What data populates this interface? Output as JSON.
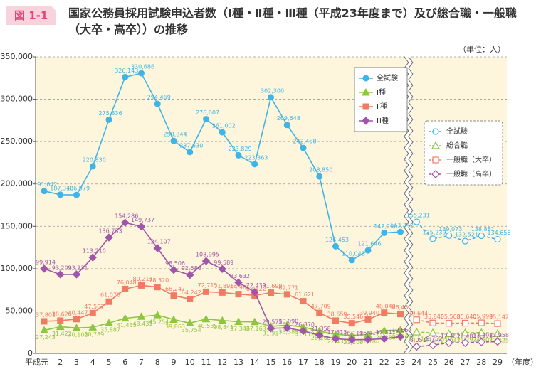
{
  "chart_data": {
    "type": "line",
    "badge": "図 1-1",
    "title": "国家公務員採用試験申込者数（Ⅰ種・Ⅱ種・Ⅲ種（平成23年度まで）及び総合職・一般職（大卒・高卒））の推移",
    "unit_label": "（単位：人）",
    "x_label": "（年度）",
    "categories": [
      "平成元",
      "2",
      "3",
      "4",
      "5",
      "6",
      "7",
      "8",
      "9",
      "10",
      "11",
      "12",
      "13",
      "14",
      "15",
      "16",
      "17",
      "18",
      "19",
      "20",
      "21",
      "22",
      "23",
      "24",
      "25",
      "26",
      "27",
      "28",
      "29"
    ],
    "ylim": [
      0,
      350000
    ],
    "yticks": [
      0,
      {
        "value": 50000,
        "label": "50,000"
      },
      {
        "value": 100000,
        "label": "100,000"
      },
      {
        "value": 150000,
        "label": "150,000"
      },
      {
        "value": 200000,
        "label": "200,000"
      },
      {
        "value": 250000,
        "label": "250,000"
      },
      {
        "value": 300000,
        "label": "300,000"
      },
      {
        "value": 350000,
        "label": "350,000"
      }
    ],
    "grid": true,
    "series": [
      {
        "name": "全試験",
        "color": "#3fb4e6",
        "marker": "circle",
        "dashed": false,
        "values": [
          191642,
          187340,
          186979,
          220830,
          275836,
          326143,
          330686,
          294469,
          250844,
          237630,
          276607,
          261002,
          233829,
          223363,
          302300,
          269648,
          242458,
          208850,
          126453,
          110043,
          121646,
          142290,
          143342,
          null,
          null,
          null,
          null,
          null,
          null
        ],
        "value_labels": [
          "191,642",
          "187,340",
          "186,979",
          "220,830",
          "275,836",
          "326,143",
          "330,686",
          "294,469",
          "250,844",
          "237,630",
          "276,607",
          "261,002",
          "233,829",
          "223,363",
          "302,300",
          "269,648",
          "242,458",
          "208,850",
          "126,453",
          "110,043",
          "121,646",
          "142,290",
          "143,342",
          null,
          null,
          null,
          null,
          null,
          null
        ]
      },
      {
        "name": "Ⅰ種",
        "color": "#8dc63f",
        "marker": "triangle",
        "dashed": false,
        "values": [
          27243,
          31422,
          30102,
          30789,
          35887,
          41433,
          43431,
          45254,
          39863,
          35754,
          40535,
          38841,
          37346,
          37163,
          31917,
          33385,
          31112,
          26268,
          22435,
          21200,
          22186,
          26888,
          27567,
          null,
          null,
          null,
          null,
          null,
          null
        ],
        "value_labels": [
          "27,243",
          "31,422",
          "30,102",
          "30,789",
          "35,887",
          "41,433",
          "43,431",
          "45,254",
          "39,863",
          "35,754",
          "40,535",
          "38,841",
          "37,346",
          "37,163",
          "31,917",
          "33,385",
          "31,112",
          "26,268",
          "22,435",
          "21,200",
          "22,186",
          "26,888",
          "27,567",
          null,
          null,
          null,
          null,
          null,
          null
        ]
      },
      {
        "name": "Ⅱ種",
        "color": "#f07a64",
        "marker": "square",
        "dashed": false,
        "values": [
          37801,
          38626,
          40447,
          47567,
          61076,
          76048,
          80211,
          78320,
          68247,
          64242,
          72715,
          71891,
          69985,
          68422,
          71699,
          69771,
          61621,
          47709,
          38659,
          35546,
          39940,
          48040,
          46450,
          null,
          null,
          null,
          null,
          null,
          null
        ],
        "value_labels": [
          "37,801",
          "38,626",
          "40,447",
          "47,567",
          "61,076",
          "76,048",
          "80,211",
          "78,320",
          "68,247",
          "64,242",
          "72,715",
          "71,891",
          "69,985",
          "68,422",
          "71,699",
          "69,771",
          "61,621",
          "47,709",
          "38,659",
          "35,546",
          "39,940",
          "48,040",
          "46,450",
          null,
          null,
          null,
          null,
          null,
          null
        ]
      },
      {
        "name": "Ⅲ種",
        "color": "#a055a8",
        "marker": "diamond",
        "dashed": false,
        "values": [
          99914,
          93202,
          93231,
          113210,
          136733,
          154286,
          149737,
          124107,
          98506,
          92586,
          108995,
          99589,
          83632,
          72439,
          29575,
          30090,
          26370,
          21358,
          17313,
          16119,
          16417,
          17311,
          19667,
          null,
          null,
          null,
          null,
          null,
          null
        ],
        "value_labels": [
          "99,914",
          "93,202",
          "93,231",
          "113,210",
          "136,733",
          "154,286",
          "149,737",
          "124,107",
          "98,506",
          "92,586",
          "108,995",
          "99,589",
          "83,632",
          "72,439",
          "29,575",
          "30,090",
          "26,370",
          "21,358",
          "17,313",
          "16,119",
          "16,417",
          "17,311",
          "19,667",
          null,
          null,
          null,
          null,
          null,
          null
        ]
      },
      {
        "name": "全試験",
        "color": "#3fb4e6",
        "marker": "circle",
        "dashed": true,
        "values": [
          null,
          null,
          null,
          null,
          null,
          null,
          null,
          null,
          null,
          null,
          null,
          null,
          null,
          null,
          null,
          null,
          null,
          null,
          null,
          null,
          null,
          null,
          null,
          155231,
          135239,
          139073,
          132521,
          138881,
          134656
        ],
        "value_labels": [
          null,
          null,
          null,
          null,
          null,
          null,
          null,
          null,
          null,
          null,
          null,
          null,
          null,
          null,
          null,
          null,
          null,
          null,
          null,
          null,
          null,
          null,
          null,
          "155,231",
          "135,239",
          "139,073",
          "132,521",
          "138,881",
          "134,656"
        ]
      },
      {
        "name": "総合職",
        "color": "#8dc63f",
        "marker": "triangle",
        "dashed": true,
        "values": [
          null,
          null,
          null,
          null,
          null,
          null,
          null,
          null,
          null,
          null,
          null,
          null,
          null,
          null,
          null,
          null,
          null,
          null,
          null,
          null,
          null,
          null,
          null,
          25110,
          24260,
          23047,
          24297,
          24507,
          23425
        ],
        "value_labels": [
          null,
          null,
          null,
          null,
          null,
          null,
          null,
          null,
          null,
          null,
          null,
          null,
          null,
          null,
          null,
          null,
          null,
          null,
          null,
          null,
          null,
          null,
          null,
          "25,110",
          "24,260",
          "23,047",
          "24,297",
          "24,507",
          "23,425"
        ]
      },
      {
        "name": "一般職（大卒）",
        "color": "#f07a64",
        "marker": "square",
        "dashed": true,
        "values": [
          null,
          null,
          null,
          null,
          null,
          null,
          null,
          null,
          null,
          null,
          null,
          null,
          null,
          null,
          null,
          null,
          null,
          null,
          null,
          null,
          null,
          null,
          null,
          39644,
          35840,
          35508,
          35640,
          35998,
          35142
        ],
        "value_labels": [
          null,
          null,
          null,
          null,
          null,
          null,
          null,
          null,
          null,
          null,
          null,
          null,
          null,
          null,
          null,
          null,
          null,
          null,
          null,
          null,
          null,
          null,
          null,
          "39,644",
          "35,840",
          "35,508",
          "35,640",
          "35,998",
          "35,142"
        ]
      },
      {
        "name": "一般職（高卒）",
        "color": "#a055a8",
        "marker": "diamond",
        "dashed": true,
        "values": [
          null,
          null,
          null,
          null,
          null,
          null,
          null,
          null,
          null,
          null,
          null,
          null,
          null,
          null,
          null,
          null,
          null,
          null,
          null,
          null,
          null,
          null,
          null,
          8051,
          9752,
          12482,
          12483,
          13393,
          13958
        ],
        "value_labels": [
          null,
          null,
          null,
          null,
          null,
          null,
          null,
          null,
          null,
          null,
          null,
          null,
          null,
          null,
          null,
          null,
          null,
          null,
          null,
          null,
          null,
          null,
          null,
          "8,051",
          "9,752",
          "12,482",
          "12,483",
          "13,393",
          "13,958"
        ]
      }
    ]
  }
}
